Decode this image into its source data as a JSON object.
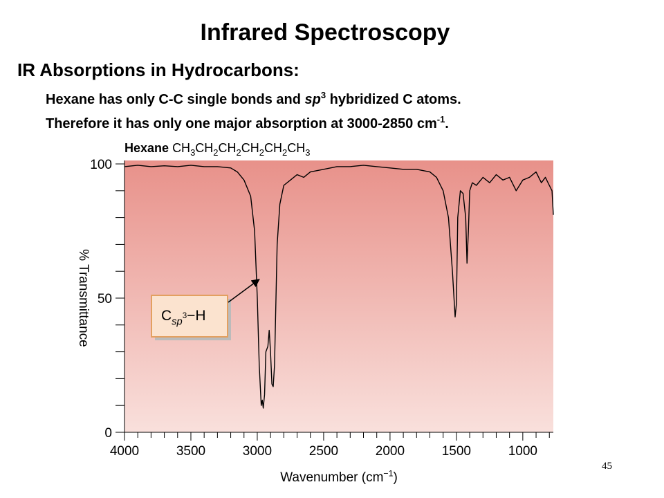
{
  "title": "Infrared Spectroscopy",
  "heading": "IR Absorptions in Hydrocarbons:",
  "body": [
    [
      {
        "text": "Hexane has only C-C single bonds and "
      },
      {
        "text": "sp",
        "style": "italic"
      },
      {
        "text": "3",
        "style": "sup"
      },
      {
        "text": " hybridized C atoms."
      }
    ],
    [
      {
        "text": "Therefore it has only one major absorption at 3000-2850 cm"
      },
      {
        "text": "-1",
        "style": "sup"
      },
      {
        "text": "."
      }
    ]
  ],
  "page_number": "45",
  "chart_data": {
    "type": "line",
    "title": "Hexane",
    "formula": [
      {
        "text": "CH"
      },
      {
        "text": "3",
        "style": "sub"
      },
      {
        "text": "CH"
      },
      {
        "text": "2",
        "style": "sub"
      },
      {
        "text": "CH"
      },
      {
        "text": "2",
        "style": "sub"
      },
      {
        "text": "CH"
      },
      {
        "text": "2",
        "style": "sub"
      },
      {
        "text": "CH"
      },
      {
        "text": "2",
        "style": "sub"
      },
      {
        "text": "CH"
      },
      {
        "text": "3",
        "style": "sub"
      }
    ],
    "xlabel": [
      {
        "text": "Wavenumber (cm"
      },
      {
        "text": "−1",
        "style": "sup"
      },
      {
        "text": ")"
      }
    ],
    "ylabel": "% Transmittance",
    "annotation": [
      {
        "text": "C"
      },
      {
        "text": "sp",
        "style": "sub-italic"
      },
      {
        "text": "3",
        "style": "sup-small"
      },
      {
        "text": "−H"
      }
    ],
    "annotation_target": [
      2985,
      57
    ],
    "color": "#000000",
    "x": [
      4000,
      3900,
      3800,
      3700,
      3600,
      3500,
      3400,
      3300,
      3200,
      3150,
      3100,
      3050,
      3020,
      3000,
      2985,
      2970,
      2962,
      2955,
      2945,
      2935,
      2920,
      2910,
      2900,
      2890,
      2880,
      2870,
      2850,
      2830,
      2800,
      2750,
      2700,
      2650,
      2600,
      2500,
      2400,
      2300,
      2200,
      2100,
      2000,
      1900,
      1800,
      1700,
      1650,
      1600,
      1560,
      1530,
      1510,
      1500,
      1490,
      1470,
      1450,
      1430,
      1420,
      1410,
      1400,
      1380,
      1350,
      1300,
      1250,
      1200,
      1150,
      1100,
      1050,
      1000,
      950,
      900,
      860,
      830,
      800,
      780,
      770
    ],
    "values": [
      99,
      99.5,
      99,
      99.3,
      99,
      99.5,
      99,
      99,
      98.5,
      97,
      94,
      88,
      75,
      50,
      25,
      10,
      12,
      9,
      14,
      30,
      32,
      38,
      30,
      18,
      17,
      25,
      70,
      85,
      92,
      94,
      96,
      95,
      97,
      98,
      99,
      99,
      99.5,
      99,
      98.5,
      98,
      98,
      97,
      95,
      90,
      80,
      60,
      43,
      48,
      80,
      90,
      89,
      80,
      63,
      75,
      90,
      93,
      92,
      95,
      93,
      96,
      94,
      95,
      90,
      94,
      95,
      97,
      93,
      95,
      92,
      90,
      81
    ],
    "xlim": [
      4000,
      770
    ],
    "xticks": [
      4000,
      3500,
      3000,
      2500,
      2000,
      1500,
      1000
    ],
    "xminorticks": [
      3900,
      3800,
      3700,
      3600,
      3400,
      3300,
      3200,
      3100,
      2900,
      2800,
      2700,
      2600,
      2400,
      2300,
      2200,
      2100,
      1900,
      1800,
      1700,
      1600,
      1400,
      1300,
      1200,
      1100,
      900,
      800
    ],
    "ylim": [
      0,
      100
    ],
    "yticks": [
      0,
      50,
      100
    ],
    "yminorticks": [
      10,
      20,
      30,
      40,
      60,
      70,
      80,
      90
    ]
  }
}
